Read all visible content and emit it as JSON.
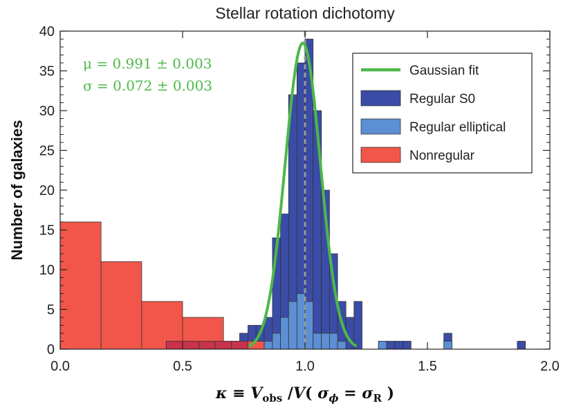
{
  "chart_data": {
    "type": "histogram",
    "title": "Stellar rotation dichotomy",
    "ylabel": "Number of galaxies",
    "xlim": [
      0.0,
      2.0
    ],
    "ylim": [
      0,
      40
    ],
    "xticks": [
      0.0,
      0.5,
      1.0,
      1.5,
      2.0
    ],
    "xtick_labels": [
      "0.0",
      "0.5",
      "1.0",
      "1.5",
      "2.0"
    ],
    "yticks": [
      0,
      5,
      10,
      15,
      20,
      25,
      30,
      35,
      40
    ],
    "yticks_minor": true,
    "reference_line_x": 1.0,
    "annotation": {
      "mu_line": "μ = 0.991 ± 0.003",
      "sigma_line": "σ = 0.072 ± 0.003",
      "color": "#4db848"
    },
    "gaussian_fit": {
      "mu": 0.991,
      "sigma": 0.072,
      "amplitude": 38.5,
      "x_range": [
        0.77,
        1.21
      ],
      "color": "#4db848"
    },
    "legend": {
      "position": "top-right",
      "items": [
        {
          "label": "Gaussian fit",
          "kind": "line",
          "color": "#4db848"
        },
        {
          "label": "Regular S0",
          "kind": "patch",
          "color": "#3a4ca6"
        },
        {
          "label": "Regular elliptical",
          "kind": "patch",
          "color": "#5c8fd4"
        },
        {
          "label": "Nonregular",
          "kind": "patch",
          "color": "#f2564a"
        }
      ]
    },
    "series": [
      {
        "name": "Regular S0",
        "color": "#3a4ca6",
        "edges": [
          0.733,
          0.767,
          0.8,
          0.833,
          0.867,
          0.9,
          0.933,
          0.967,
          1.0,
          1.033,
          1.067,
          1.1,
          1.133,
          1.167,
          1.2,
          1.233,
          1.267,
          1.3,
          1.333,
          1.367,
          1.4,
          1.433,
          1.467,
          1.5,
          1.533,
          1.567,
          1.6,
          1.633,
          1.667,
          1.7,
          1.733,
          1.767,
          1.8,
          1.833,
          1.867,
          1.9,
          1.933
        ],
        "counts": [
          2,
          3,
          3,
          4,
          14,
          17,
          32,
          36,
          39,
          30,
          20,
          12,
          6,
          4,
          6,
          0,
          0,
          1,
          1,
          1,
          1,
          0,
          0,
          0,
          0,
          2,
          0,
          0,
          0,
          0,
          0,
          0,
          0,
          0,
          1,
          0
        ]
      },
      {
        "name": "Regular elliptical",
        "color": "#5c8fd4",
        "edges": [
          0.8,
          0.833,
          0.867,
          0.9,
          0.933,
          0.967,
          1.0,
          1.033,
          1.067,
          1.1,
          1.133,
          1.167,
          1.2,
          1.233,
          1.267,
          1.3,
          1.333,
          1.367,
          1.4,
          1.433,
          1.467,
          1.5,
          1.533,
          1.567,
          1.6,
          1.633
        ],
        "counts": [
          0,
          1,
          2,
          4,
          6,
          7,
          6,
          2,
          2,
          2,
          1,
          0,
          0,
          0,
          0,
          1,
          0,
          0,
          0,
          0,
          0,
          0,
          0,
          1,
          0
        ]
      },
      {
        "name": "Nonregular",
        "color": "#f2564a",
        "edges": [
          0.0,
          0.167,
          0.333,
          0.5,
          0.667,
          0.833
        ],
        "counts": [
          16,
          11,
          6,
          4,
          1
        ]
      },
      {
        "name": "Nonregular",
        "color": "#c8324a",
        "edges": [
          0.433,
          0.5,
          0.567,
          0.633,
          0.7,
          0.767
        ],
        "counts": [
          1,
          1,
          1,
          1,
          1
        ]
      }
    ]
  }
}
